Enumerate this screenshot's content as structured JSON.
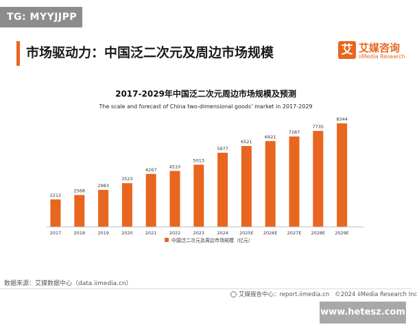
{
  "badge": "TG: MYYJJPP",
  "page_title": "市场驱动力：中国泛二次元及周边市场规模",
  "brand": {
    "logo_char": "艾",
    "name": "艾媒咨询",
    "sub": "iiMedia Research"
  },
  "footer": {
    "source": "数据来源：艾媒数据中心（data.iimedia.cn）",
    "report": "艾媒报告中心：report.iimedia.cn",
    "copyright": "©2024  iiMedia Research Inc"
  },
  "watermark": "www.hetesz.com",
  "colors": {
    "accent": "#e8661f"
  },
  "chart_data": {
    "type": "bar",
    "title": "2017-2029年中国泛二次元周边市场规模及预测",
    "subtitle": "The scale and forecast of China two-dimensional goods’ market in 2017-2029",
    "categories": [
      "2017",
      "2018",
      "2019",
      "2020",
      "2021",
      "2022",
      "2023",
      "2024",
      "2025E",
      "2026E",
      "2027E",
      "2028E",
      "2029E"
    ],
    "values": [
      2212,
      2568,
      2983,
      3523,
      4267,
      4510,
      5013,
      5977,
      6521,
      6921,
      7287,
      7735,
      8344
    ],
    "series_name": "中国泛二次元及周边市场规模（亿元）",
    "xlabel": "",
    "ylabel": "",
    "ylim": [
      0,
      8500
    ],
    "legend": "bottom",
    "grid": false
  }
}
